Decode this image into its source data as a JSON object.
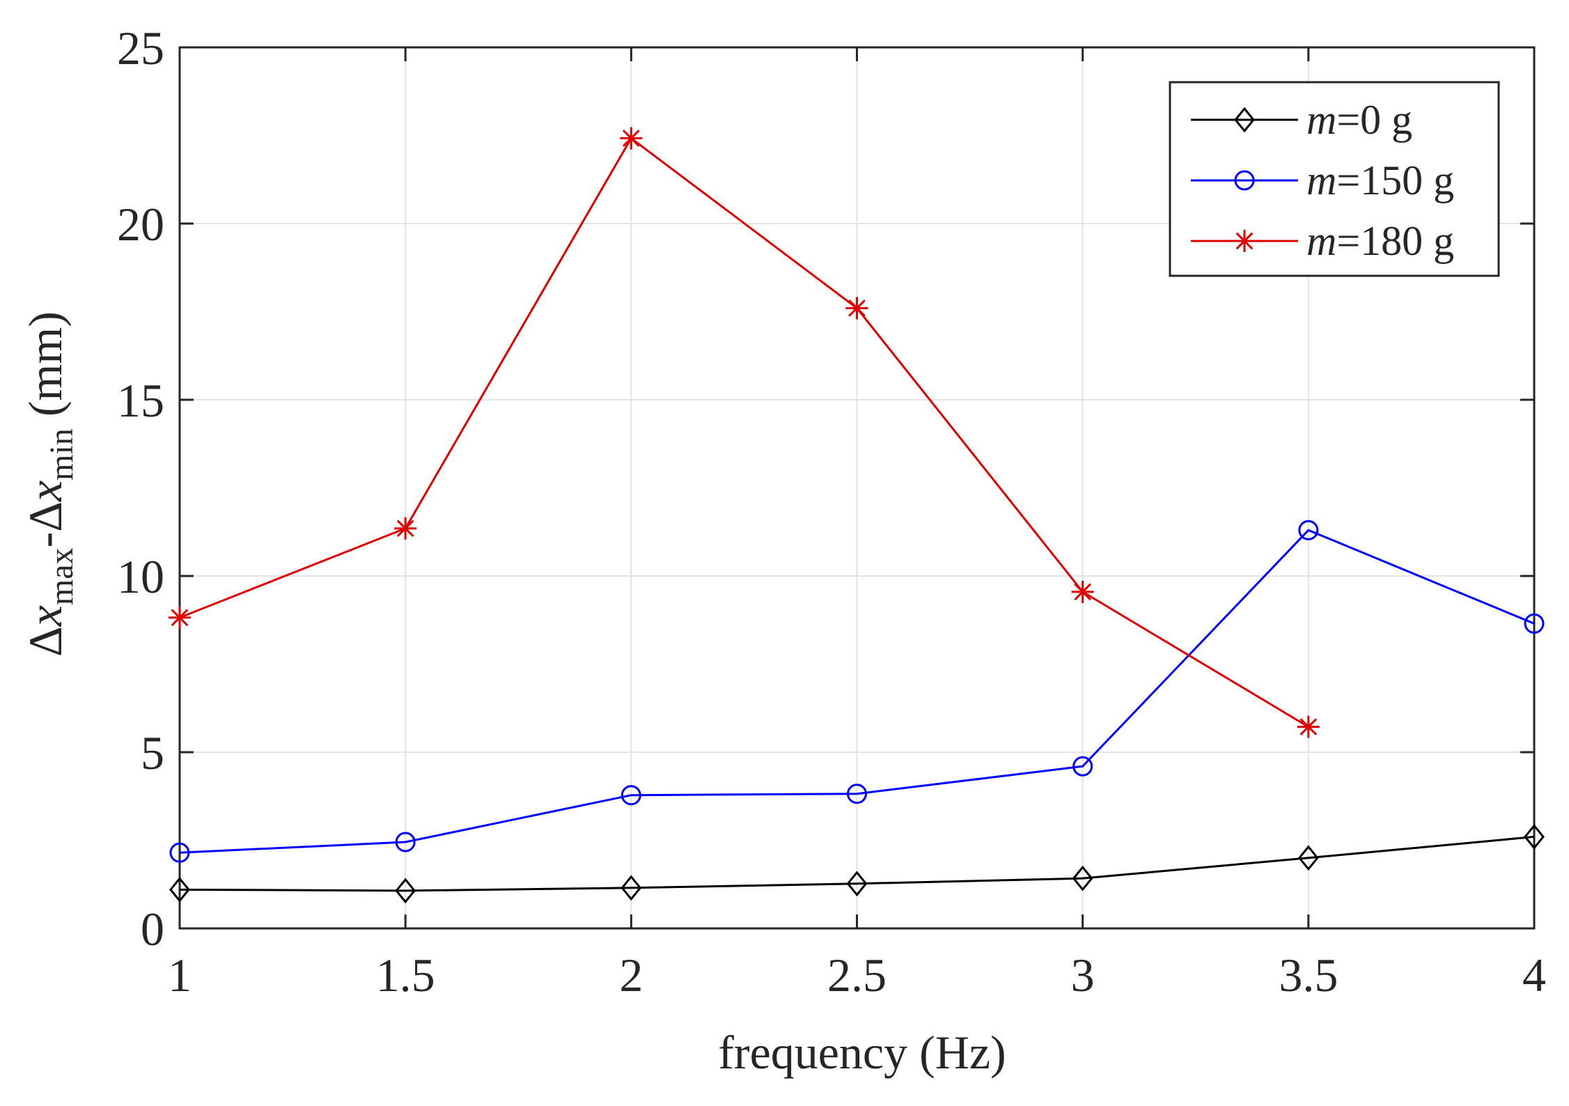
{
  "chart_data": {
    "type": "line",
    "title": "",
    "xlabel": "frequency (Hz)",
    "ylabel": {
      "delta": "Δ",
      "var": "x",
      "sub_max": "max",
      "minus": "-",
      "sub_min": "min",
      "units": " (mm)"
    },
    "xlim": [
      1,
      4
    ],
    "ylim": [
      0,
      25
    ],
    "xticks": [
      1,
      1.5,
      2,
      2.5,
      3,
      3.5,
      4
    ],
    "xtick_labels": [
      "1",
      "1.5",
      "2",
      "2.5",
      "3",
      "3.5",
      "4"
    ],
    "yticks": [
      0,
      5,
      10,
      15,
      20,
      25
    ],
    "ytick_labels": [
      "0",
      "5",
      "10",
      "15",
      "20",
      "25"
    ],
    "grid": true,
    "legend_position": "top-right",
    "series": [
      {
        "name": "m=0 g",
        "legend_var": "m",
        "legend_rest": "=0 g",
        "color": "#000000",
        "marker": "diamond",
        "x": [
          1,
          1.5,
          2,
          2.5,
          3,
          3.5,
          4
        ],
        "values": [
          1.1,
          1.07,
          1.15,
          1.27,
          1.42,
          2.0,
          2.6
        ]
      },
      {
        "name": "m=150 g",
        "legend_var": "m",
        "legend_rest": "=150 g",
        "color": "#0000ff",
        "marker": "circle",
        "x": [
          1,
          1.5,
          2,
          2.5,
          3,
          3.5,
          4
        ],
        "values": [
          2.15,
          2.45,
          3.78,
          3.82,
          4.6,
          11.3,
          8.65
        ]
      },
      {
        "name": "m=180 g",
        "legend_var": "m",
        "legend_rest": "=180 g",
        "color": "#e00000",
        "marker": "asterisk",
        "x": [
          1,
          1.5,
          2,
          2.5,
          3,
          3.5
        ],
        "values": [
          8.82,
          11.35,
          22.42,
          17.6,
          9.55,
          5.72
        ]
      }
    ]
  }
}
